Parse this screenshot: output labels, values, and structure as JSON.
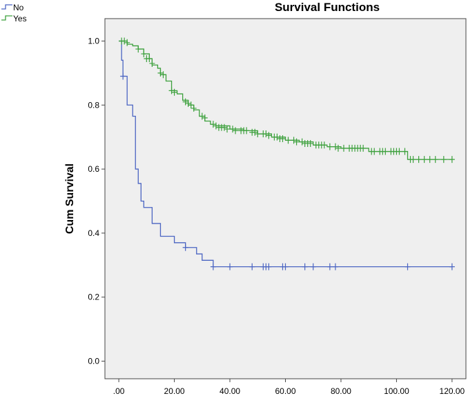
{
  "chart_data": {
    "type": "line",
    "title": "Survival Functions",
    "xlabel": "",
    "ylabel": "Cum Survival",
    "xlim": [
      -5,
      125
    ],
    "ylim": [
      -0.055,
      1.07
    ],
    "xticks": [
      0,
      20,
      40,
      60,
      80,
      100,
      120
    ],
    "xtick_labels": [
      ".00",
      "20.00",
      "40.00",
      "60.00",
      "80.00",
      "100.00",
      "120.00"
    ],
    "yticks": [
      0.0,
      0.2,
      0.4,
      0.6,
      0.8,
      1.0
    ],
    "ytick_labels": [
      "0.0",
      "0.2",
      "0.4",
      "0.6",
      "0.8",
      "1.0"
    ],
    "grid": false,
    "legend_position": "top-left",
    "series": [
      {
        "name": "No",
        "color": "#4a64c2",
        "steps": [
          [
            0,
            1.0
          ],
          [
            1,
            0.94
          ],
          [
            1.5,
            0.89
          ],
          [
            3,
            0.8
          ],
          [
            5,
            0.765
          ],
          [
            6,
            0.6
          ],
          [
            7,
            0.555
          ],
          [
            8,
            0.5
          ],
          [
            9,
            0.48
          ],
          [
            12,
            0.43
          ],
          [
            15,
            0.39
          ],
          [
            20,
            0.37
          ],
          [
            24,
            0.355
          ],
          [
            28,
            0.335
          ],
          [
            30,
            0.315
          ],
          [
            34,
            0.295
          ],
          [
            120,
            0.295
          ]
        ],
        "censored": [
          [
            1.5,
            0.89
          ],
          [
            24,
            0.355
          ],
          [
            34,
            0.295
          ],
          [
            40,
            0.295
          ],
          [
            48,
            0.295
          ],
          [
            52,
            0.295
          ],
          [
            53,
            0.295
          ],
          [
            54,
            0.295
          ],
          [
            59,
            0.295
          ],
          [
            60,
            0.295
          ],
          [
            67,
            0.295
          ],
          [
            70,
            0.295
          ],
          [
            76,
            0.295
          ],
          [
            78,
            0.295
          ],
          [
            104,
            0.295
          ],
          [
            120,
            0.295
          ]
        ]
      },
      {
        "name": "Yes",
        "color": "#3ca03c",
        "steps": [
          [
            0,
            1.0
          ],
          [
            3,
            0.99
          ],
          [
            5,
            0.985
          ],
          [
            7,
            0.975
          ],
          [
            9,
            0.96
          ],
          [
            11,
            0.945
          ],
          [
            12,
            0.925
          ],
          [
            14,
            0.915
          ],
          [
            15,
            0.895
          ],
          [
            17,
            0.875
          ],
          [
            19,
            0.845
          ],
          [
            21,
            0.835
          ],
          [
            23,
            0.815
          ],
          [
            25,
            0.8
          ],
          [
            27,
            0.785
          ],
          [
            29,
            0.765
          ],
          [
            31,
            0.75
          ],
          [
            33,
            0.74
          ],
          [
            35,
            0.735
          ],
          [
            40,
            0.725
          ],
          [
            45,
            0.72
          ],
          [
            50,
            0.71
          ],
          [
            55,
            0.7
          ],
          [
            60,
            0.69
          ],
          [
            65,
            0.685
          ],
          [
            70,
            0.675
          ],
          [
            75,
            0.67
          ],
          [
            80,
            0.665
          ],
          [
            90,
            0.655
          ],
          [
            104,
            0.63
          ],
          [
            120,
            0.63
          ]
        ],
        "censored": [
          [
            1,
            1.0
          ],
          [
            2,
            1.0
          ],
          [
            3,
            0.995
          ],
          [
            7,
            0.975
          ],
          [
            9,
            0.96
          ],
          [
            10,
            0.945
          ],
          [
            11,
            0.945
          ],
          [
            12,
            0.93
          ],
          [
            15,
            0.9
          ],
          [
            16,
            0.895
          ],
          [
            19,
            0.845
          ],
          [
            20,
            0.84
          ],
          [
            24,
            0.81
          ],
          [
            25,
            0.805
          ],
          [
            26,
            0.8
          ],
          [
            27,
            0.79
          ],
          [
            30,
            0.765
          ],
          [
            31,
            0.76
          ],
          [
            34,
            0.74
          ],
          [
            35,
            0.735
          ],
          [
            36,
            0.73
          ],
          [
            37,
            0.73
          ],
          [
            38,
            0.73
          ],
          [
            39,
            0.725
          ],
          [
            41,
            0.725
          ],
          [
            42,
            0.72
          ],
          [
            44,
            0.72
          ],
          [
            45,
            0.72
          ],
          [
            46,
            0.72
          ],
          [
            48,
            0.715
          ],
          [
            49,
            0.715
          ],
          [
            50,
            0.71
          ],
          [
            52,
            0.71
          ],
          [
            53,
            0.71
          ],
          [
            54,
            0.705
          ],
          [
            56,
            0.7
          ],
          [
            57,
            0.7
          ],
          [
            58,
            0.695
          ],
          [
            59,
            0.695
          ],
          [
            61,
            0.69
          ],
          [
            63,
            0.69
          ],
          [
            64,
            0.685
          ],
          [
            66,
            0.685
          ],
          [
            67,
            0.68
          ],
          [
            68,
            0.68
          ],
          [
            69,
            0.68
          ],
          [
            71,
            0.675
          ],
          [
            72,
            0.675
          ],
          [
            73,
            0.675
          ],
          [
            74,
            0.675
          ],
          [
            76,
            0.67
          ],
          [
            78,
            0.67
          ],
          [
            79,
            0.665
          ],
          [
            81,
            0.665
          ],
          [
            83,
            0.665
          ],
          [
            84,
            0.665
          ],
          [
            85,
            0.665
          ],
          [
            86,
            0.665
          ],
          [
            87,
            0.665
          ],
          [
            88,
            0.665
          ],
          [
            91,
            0.655
          ],
          [
            92,
            0.655
          ],
          [
            94,
            0.655
          ],
          [
            95,
            0.655
          ],
          [
            96,
            0.655
          ],
          [
            98,
            0.655
          ],
          [
            99,
            0.655
          ],
          [
            100,
            0.655
          ],
          [
            101,
            0.655
          ],
          [
            103,
            0.655
          ],
          [
            105,
            0.63
          ],
          [
            106,
            0.63
          ],
          [
            108,
            0.63
          ],
          [
            110,
            0.63
          ],
          [
            112,
            0.63
          ],
          [
            114,
            0.63
          ],
          [
            117,
            0.63
          ],
          [
            120,
            0.63
          ]
        ]
      }
    ]
  }
}
